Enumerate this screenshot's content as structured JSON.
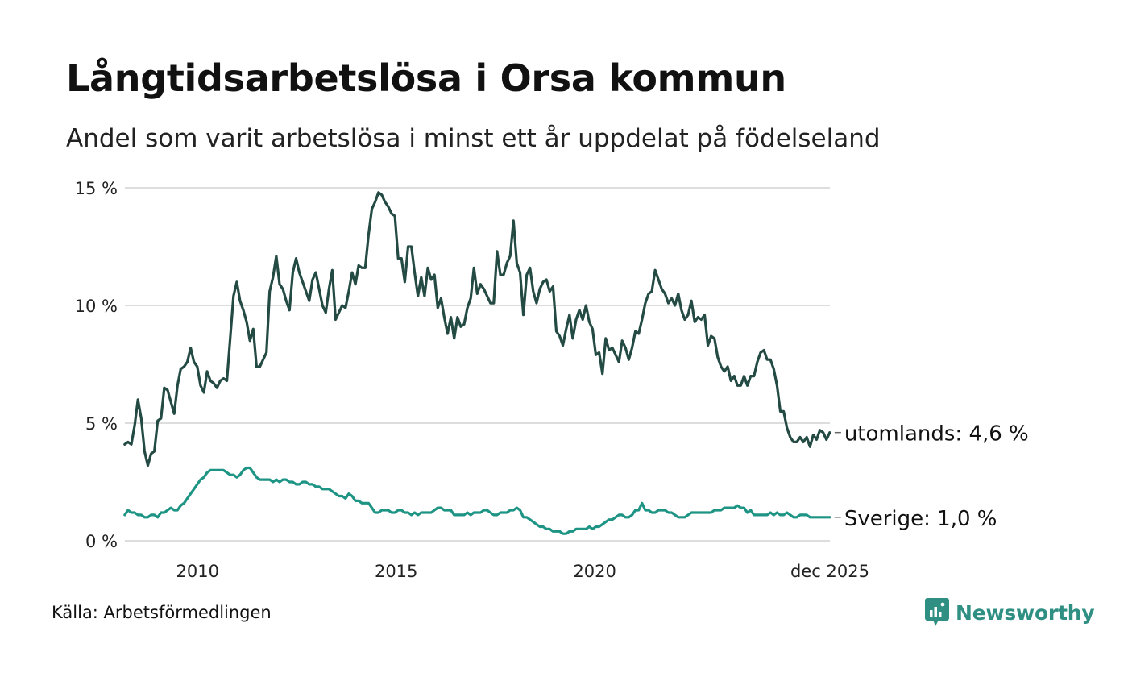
{
  "title": "Långtidsarbetslösa i Orsa kommun",
  "subtitle": "Andel som varit arbetslösa i minst ett år uppdelat på födelseland",
  "source": "Källa: Arbetsförmedlingen",
  "brand": {
    "name": "Newsworthy",
    "color": "#2f8f83",
    "icon": "newsworthy-logo-icon"
  },
  "colors": {
    "utomlands": "#234a43",
    "sverige": "#1e9484",
    "grid": "#dddddd",
    "text": "#111111"
  },
  "chart_data": {
    "type": "line",
    "title": "Långtidsarbetslösa i Orsa kommun",
    "xlabel": "",
    "ylabel": "",
    "x_start": "2008-03",
    "x_end": "2025-12",
    "xlim": [
      2008.17,
      2025.92
    ],
    "ylim": [
      0,
      15
    ],
    "grid": true,
    "y_ticks": [
      {
        "value": 0,
        "label": "0 %"
      },
      {
        "value": 5,
        "label": "5 %"
      },
      {
        "value": 10,
        "label": "10 %"
      },
      {
        "value": 15,
        "label": "15 %"
      }
    ],
    "x_ticks": [
      {
        "value": 2010.0,
        "label": "2010"
      },
      {
        "value": 2015.0,
        "label": "2015"
      },
      {
        "value": 2020.0,
        "label": "2020"
      },
      {
        "value": 2025.92,
        "label": "dec 2025"
      }
    ],
    "series": [
      {
        "name": "utomlands",
        "label": "utomlands: 4,6 %",
        "final": 4.6,
        "values": [
          4.1,
          4.2,
          4.1,
          4.9,
          6.0,
          5.2,
          3.8,
          3.2,
          3.7,
          3.8,
          5.1,
          5.2,
          6.5,
          6.4,
          5.9,
          5.4,
          6.6,
          7.3,
          7.4,
          7.6,
          8.2,
          7.6,
          7.4,
          6.6,
          6.3,
          7.2,
          6.8,
          6.7,
          6.5,
          6.8,
          6.9,
          6.8,
          8.6,
          10.4,
          11.0,
          10.2,
          9.8,
          9.3,
          8.5,
          9.0,
          7.4,
          7.4,
          7.7,
          8.0,
          10.6,
          11.2,
          12.1,
          10.9,
          10.7,
          10.2,
          9.8,
          11.4,
          12.0,
          11.4,
          11.0,
          10.6,
          10.2,
          11.1,
          11.4,
          10.7,
          10.0,
          9.7,
          10.7,
          11.5,
          9.4,
          9.7,
          10.0,
          9.9,
          10.6,
          11.4,
          10.9,
          11.7,
          11.6,
          11.6,
          13.0,
          14.1,
          14.4,
          14.8,
          14.7,
          14.4,
          14.2,
          13.9,
          13.8,
          12.0,
          12.0,
          11.0,
          12.5,
          12.5,
          11.4,
          10.4,
          11.2,
          10.4,
          11.6,
          11.1,
          11.3,
          9.9,
          10.3,
          9.5,
          8.8,
          9.5,
          8.6,
          9.5,
          9.1,
          9.2,
          9.9,
          10.3,
          11.6,
          10.5,
          10.9,
          10.7,
          10.4,
          10.1,
          10.1,
          12.3,
          11.3,
          11.3,
          11.8,
          12.1,
          13.6,
          11.8,
          11.4,
          9.6,
          11.3,
          11.6,
          10.6,
          10.1,
          10.7,
          11.0,
          11.1,
          10.6,
          10.8,
          8.9,
          8.7,
          8.3,
          9.0,
          9.6,
          8.6,
          9.4,
          9.8,
          9.4,
          10.0,
          9.3,
          9.0,
          7.9,
          8.0,
          7.1,
          8.6,
          8.1,
          8.2,
          7.9,
          7.6,
          8.5,
          8.2,
          7.7,
          8.2,
          8.9,
          8.8,
          9.4,
          10.1,
          10.5,
          10.6,
          11.5,
          11.1,
          10.7,
          10.5,
          10.1,
          10.3,
          10.0,
          10.5,
          9.8,
          9.4,
          9.6,
          10.2,
          9.3,
          9.5,
          9.4,
          9.6,
          8.3,
          8.7,
          8.6,
          7.8,
          7.4,
          7.2,
          7.4,
          6.8,
          7.0,
          6.6,
          6.6,
          7.0,
          6.6,
          7.0,
          7.0,
          7.6,
          8.0,
          8.1,
          7.7,
          7.7,
          7.3,
          6.6,
          5.5,
          5.5,
          4.8,
          4.4,
          4.2,
          4.2,
          4.4,
          4.2,
          4.4,
          4.0,
          4.5,
          4.3,
          4.7,
          4.6,
          4.3,
          4.6
        ]
      },
      {
        "name": "Sverige",
        "label": "Sverige: 1,0 %",
        "final": 1.0,
        "values": [
          1.1,
          1.3,
          1.2,
          1.2,
          1.1,
          1.1,
          1.0,
          1.0,
          1.1,
          1.1,
          1.0,
          1.2,
          1.2,
          1.3,
          1.4,
          1.3,
          1.3,
          1.5,
          1.6,
          1.8,
          2.0,
          2.2,
          2.4,
          2.6,
          2.7,
          2.9,
          3.0,
          3.0,
          3.0,
          3.0,
          3.0,
          2.9,
          2.8,
          2.8,
          2.7,
          2.8,
          3.0,
          3.1,
          3.1,
          2.9,
          2.7,
          2.6,
          2.6,
          2.6,
          2.6,
          2.5,
          2.6,
          2.5,
          2.6,
          2.6,
          2.5,
          2.5,
          2.4,
          2.4,
          2.5,
          2.5,
          2.4,
          2.4,
          2.3,
          2.3,
          2.2,
          2.2,
          2.2,
          2.1,
          2.0,
          1.9,
          1.9,
          1.8,
          2.0,
          1.9,
          1.7,
          1.7,
          1.6,
          1.6,
          1.6,
          1.4,
          1.2,
          1.2,
          1.3,
          1.3,
          1.3,
          1.2,
          1.2,
          1.3,
          1.3,
          1.2,
          1.2,
          1.1,
          1.2,
          1.1,
          1.2,
          1.2,
          1.2,
          1.2,
          1.3,
          1.4,
          1.4,
          1.3,
          1.3,
          1.3,
          1.1,
          1.1,
          1.1,
          1.1,
          1.2,
          1.1,
          1.2,
          1.2,
          1.2,
          1.3,
          1.3,
          1.2,
          1.1,
          1.1,
          1.2,
          1.2,
          1.2,
          1.3,
          1.3,
          1.4,
          1.3,
          1.0,
          1.0,
          0.9,
          0.8,
          0.7,
          0.6,
          0.6,
          0.5,
          0.5,
          0.4,
          0.4,
          0.4,
          0.3,
          0.3,
          0.4,
          0.4,
          0.5,
          0.5,
          0.5,
          0.5,
          0.6,
          0.5,
          0.6,
          0.6,
          0.7,
          0.8,
          0.9,
          0.9,
          1.0,
          1.1,
          1.1,
          1.0,
          1.0,
          1.1,
          1.3,
          1.3,
          1.6,
          1.3,
          1.3,
          1.2,
          1.2,
          1.3,
          1.3,
          1.3,
          1.2,
          1.2,
          1.1,
          1.0,
          1.0,
          1.0,
          1.1,
          1.2,
          1.2,
          1.2,
          1.2,
          1.2,
          1.2,
          1.2,
          1.3,
          1.3,
          1.3,
          1.4,
          1.4,
          1.4,
          1.4,
          1.5,
          1.4,
          1.4,
          1.2,
          1.3,
          1.1,
          1.1,
          1.1,
          1.1,
          1.1,
          1.2,
          1.1,
          1.2,
          1.1,
          1.1,
          1.2,
          1.1,
          1.0,
          1.0,
          1.1,
          1.1,
          1.1,
          1.0,
          1.0,
          1.0,
          1.0,
          1.0,
          1.0,
          1.0
        ]
      }
    ]
  }
}
